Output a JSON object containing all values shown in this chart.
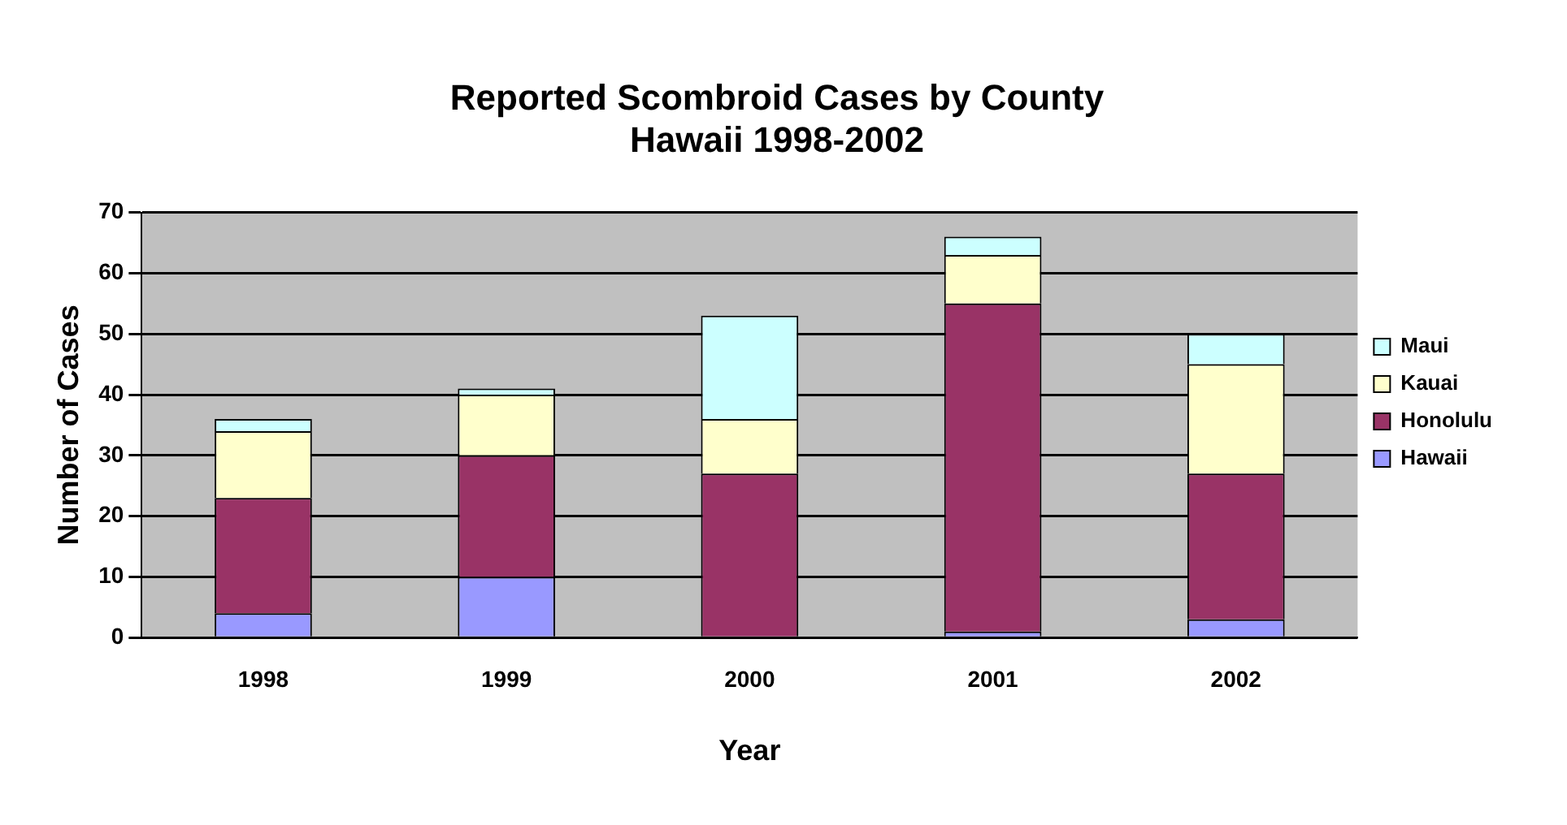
{
  "chart_data": {
    "type": "bar",
    "title": "Reported Scombroid Cases by County\nHawaii 1998-2002",
    "xlabel": "Year",
    "ylabel": "Number of Cases",
    "categories": [
      "1998",
      "1999",
      "2000",
      "2001",
      "2002"
    ],
    "stacked": true,
    "series": [
      {
        "name": "Hawaii",
        "color": "#9999ff",
        "values": [
          4,
          10,
          0,
          1,
          3
        ]
      },
      {
        "name": "Honolulu",
        "color": "#993366",
        "values": [
          19,
          20,
          27,
          54,
          24
        ]
      },
      {
        "name": "Kauai",
        "color": "#ffffcc",
        "values": [
          11,
          10,
          9,
          8,
          18
        ]
      },
      {
        "name": "Maui",
        "color": "#ccffff",
        "values": [
          2,
          1,
          17,
          3,
          5
        ]
      }
    ],
    "ylim": [
      0,
      70
    ],
    "yticks": [
      0,
      10,
      20,
      30,
      40,
      50,
      60,
      70
    ],
    "grid": "y",
    "legend": "right"
  }
}
